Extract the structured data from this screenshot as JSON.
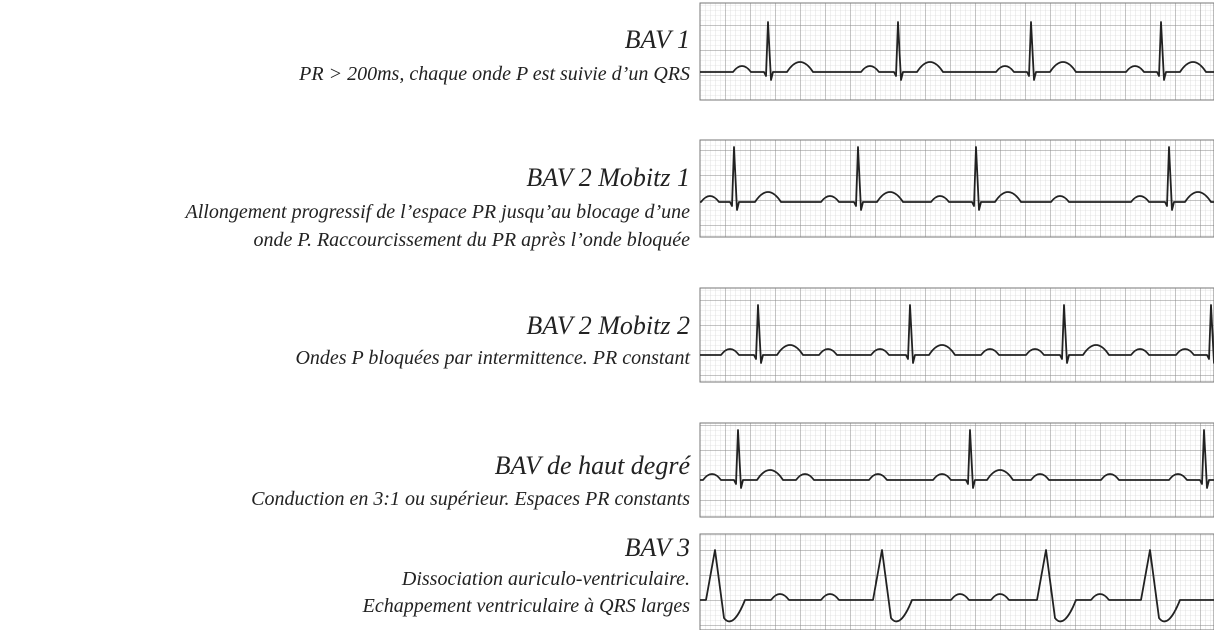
{
  "items": [
    {
      "title": "BAV 1",
      "description": [
        "PR > 200ms, chaque onde P est suivie d’un QRS"
      ]
    },
    {
      "title": "BAV 2 Mobitz 1",
      "description": [
        "Allongement progressif de l’espace PR jusqu’au blocage d’une",
        "onde P. Raccourcissement du PR après l’onde bloquée"
      ]
    },
    {
      "title": "BAV 2 Mobitz 2",
      "description": [
        "Ondes P bloquées par intermittence. PR constant"
      ]
    },
    {
      "title": "BAV de haut degré",
      "description": [
        "Conduction en 3:1 ou supérieur. Espaces PR constants"
      ]
    },
    {
      "title": "BAV 3",
      "description": [
        "Dissociation auriculo-ventriculaire.",
        "Echappement ventriculaire à QRS larges"
      ]
    }
  ]
}
